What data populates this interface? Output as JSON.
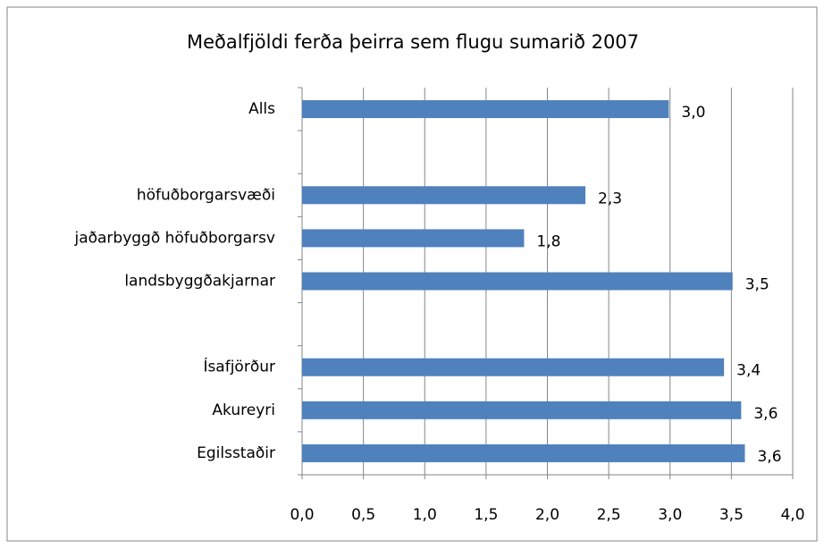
{
  "chart_data": {
    "type": "bar",
    "orientation": "horizontal",
    "title": "Meðalfjöldi ferða þeirra sem flugu sumarið 2007",
    "categories": [
      "Alls",
      null,
      "höfuðborgarsvæði",
      "jaðarbyggð höfuðborgarsv",
      "landsbyggðakjarnar",
      null,
      "Ísafjörður",
      "Akureyri",
      "Egilsstaðir"
    ],
    "values": [
      2.99,
      null,
      2.31,
      1.81,
      3.51,
      null,
      3.44,
      3.58,
      3.61
    ],
    "value_labels": [
      "3,0",
      null,
      "2,3",
      "1,8",
      "3,5",
      null,
      "3,4",
      "3,6",
      "3,6"
    ],
    "color": "#4f81bd",
    "xlim": [
      0,
      4
    ],
    "xticks": [
      {
        "value": 0,
        "label": "0,0"
      },
      {
        "value": 0.5,
        "label": "0,5"
      },
      {
        "value": 1,
        "label": "1,0"
      },
      {
        "value": 1.5,
        "label": "1,5"
      },
      {
        "value": 2,
        "label": "2,0"
      },
      {
        "value": 2.5,
        "label": "2,5"
      },
      {
        "value": 3,
        "label": "3,0"
      },
      {
        "value": 3.5,
        "label": "3,5"
      },
      {
        "value": 4,
        "label": "4,0"
      }
    ],
    "grid": true
  }
}
